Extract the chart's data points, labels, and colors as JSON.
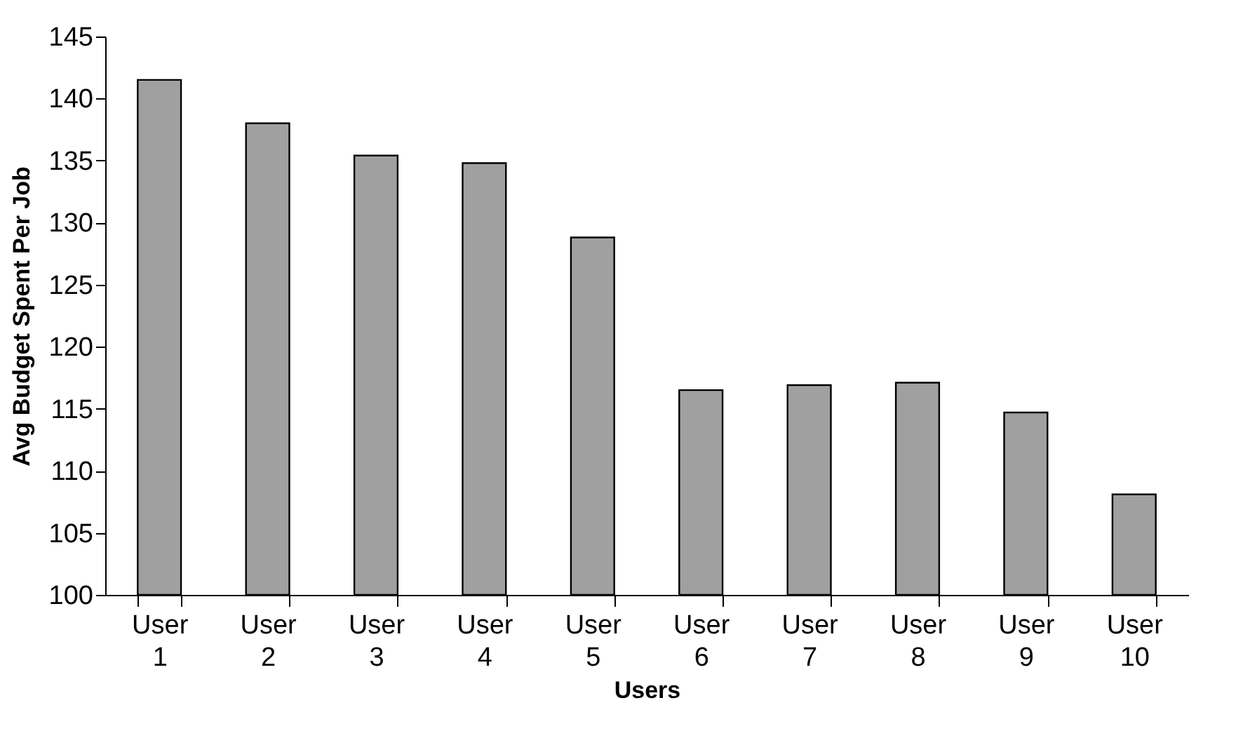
{
  "chart_data": {
    "type": "bar",
    "xlabel": "Users",
    "ylabel": "Avg Budget Spent Per Job",
    "categories": [
      "User 1",
      "User 2",
      "User 3",
      "User 4",
      "User 5",
      "User 6",
      "User 7",
      "User 8",
      "User 9",
      "User 10"
    ],
    "values": [
      141.5,
      138.0,
      135.4,
      134.8,
      128.8,
      116.5,
      116.9,
      117.1,
      114.7,
      108.1
    ],
    "color": "#a0a0a0",
    "grid": false,
    "ylim": [
      100,
      145
    ],
    "yticks": [
      100,
      105,
      110,
      115,
      120,
      125,
      130,
      135,
      140,
      145
    ]
  }
}
